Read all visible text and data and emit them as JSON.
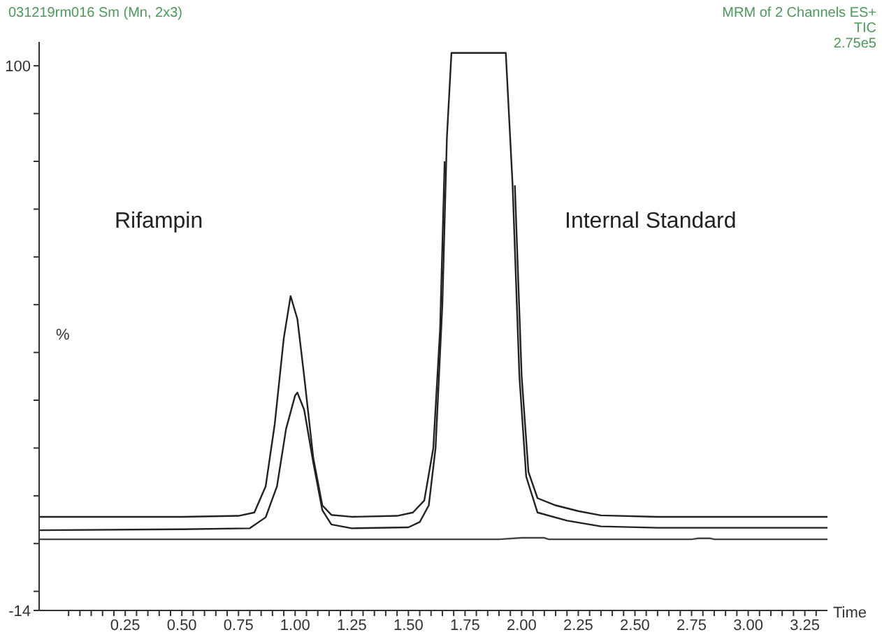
{
  "chart_data": {
    "type": "line",
    "title": "031219rm016 Sm (Mn, 2x3)",
    "subtitle": "MRM of 2 Channels ES+\nTIC\n2.75e5",
    "xlabel": "Time",
    "ylabel": "%",
    "annotations": [
      "Rifampin",
      "Internal Standard"
    ],
    "xlim": [
      -0.13,
      3.35
    ],
    "ylim": [
      -14,
      105
    ],
    "yticks": [
      {
        "value": 100,
        "label": "100"
      },
      {
        "value": 90,
        "label": null
      },
      {
        "value": 80,
        "label": null
      },
      {
        "value": 70,
        "label": null
      },
      {
        "value": 60,
        "label": null
      },
      {
        "value": 50,
        "label": null
      },
      {
        "value": 40,
        "label": null
      },
      {
        "value": 30,
        "label": null
      },
      {
        "value": 20,
        "label": null
      },
      {
        "value": 10,
        "label": null
      },
      {
        "value": 0,
        "label": null
      },
      {
        "value": -10,
        "label": null
      },
      {
        "value": -14,
        "label": "-14"
      }
    ],
    "xticks": [
      {
        "value": 0,
        "label": null
      },
      {
        "value": 0.05,
        "label": null
      },
      {
        "value": 0.1,
        "label": null
      },
      {
        "value": 0.15,
        "label": null
      },
      {
        "value": 0.2,
        "label": null
      },
      {
        "value": 0.25,
        "label": "0.25"
      },
      {
        "value": 0.3,
        "label": null
      },
      {
        "value": 0.35,
        "label": null
      },
      {
        "value": 0.4,
        "label": null
      },
      {
        "value": 0.45,
        "label": null
      },
      {
        "value": 0.5,
        "label": "0.50"
      },
      {
        "value": 0.55,
        "label": null
      },
      {
        "value": 0.6,
        "label": null
      },
      {
        "value": 0.65,
        "label": null
      },
      {
        "value": 0.7,
        "label": null
      },
      {
        "value": 0.75,
        "label": "0.75"
      },
      {
        "value": 0.8,
        "label": null
      },
      {
        "value": 0.85,
        "label": null
      },
      {
        "value": 0.9,
        "label": null
      },
      {
        "value": 0.95,
        "label": null
      },
      {
        "value": 1,
        "label": "1.00"
      },
      {
        "value": 1.05,
        "label": null
      },
      {
        "value": 1.1,
        "label": null
      },
      {
        "value": 1.15,
        "label": null
      },
      {
        "value": 1.2,
        "label": null
      },
      {
        "value": 1.25,
        "label": "1.25"
      },
      {
        "value": 1.3,
        "label": null
      },
      {
        "value": 1.35,
        "label": null
      },
      {
        "value": 1.4,
        "label": null
      },
      {
        "value": 1.45,
        "label": null
      },
      {
        "value": 1.5,
        "label": "1.50"
      },
      {
        "value": 1.55,
        "label": null
      },
      {
        "value": 1.6,
        "label": null
      },
      {
        "value": 1.65,
        "label": null
      },
      {
        "value": 1.7,
        "label": null
      },
      {
        "value": 1.75,
        "label": "1.75"
      },
      {
        "value": 1.8,
        "label": null
      },
      {
        "value": 1.85,
        "label": null
      },
      {
        "value": 1.9,
        "label": null
      },
      {
        "value": 1.95,
        "label": null
      },
      {
        "value": 2,
        "label": "2.00"
      },
      {
        "value": 2.05,
        "label": null
      },
      {
        "value": 2.1,
        "label": null
      },
      {
        "value": 2.15,
        "label": null
      },
      {
        "value": 2.2,
        "label": null
      },
      {
        "value": 2.25,
        "label": "2.25"
      },
      {
        "value": 2.3,
        "label": null
      },
      {
        "value": 2.35,
        "label": null
      },
      {
        "value": 2.4,
        "label": null
      },
      {
        "value": 2.45,
        "label": null
      },
      {
        "value": 2.5,
        "label": "2.50"
      },
      {
        "value": 2.55,
        "label": null
      },
      {
        "value": 2.6,
        "label": null
      },
      {
        "value": 2.65,
        "label": null
      },
      {
        "value": 2.7,
        "label": null
      },
      {
        "value": 2.75,
        "label": "2.75"
      },
      {
        "value": 2.8,
        "label": null
      },
      {
        "value": 2.85,
        "label": null
      },
      {
        "value": 2.9,
        "label": null
      },
      {
        "value": 2.95,
        "label": null
      },
      {
        "value": 3,
        "label": "3.00"
      },
      {
        "value": 3.05,
        "label": null
      },
      {
        "value": 3.1,
        "label": null
      },
      {
        "value": 3.15,
        "label": null
      },
      {
        "value": 3.2,
        "label": null
      },
      {
        "value": 3.25,
        "label": "3.25"
      },
      {
        "value": 3.3,
        "label": null
      }
    ],
    "grid": false,
    "legend": false,
    "marker": "none",
    "line_style": "solid",
    "series": [
      {
        "color": "#222222",
        "x": [
          -0.13,
          0.5,
          0.75,
          0.82,
          0.87,
          0.91,
          0.95,
          0.98,
          1.01,
          1.04,
          1.08,
          1.12,
          1.16,
          1.25,
          1.45,
          1.52,
          1.57,
          1.61,
          1.64,
          1.66,
          1.68,
          1.94,
          1.97,
          2.0,
          2.03,
          2.07,
          2.15,
          2.25,
          2.35,
          2.6,
          3.35
        ],
        "values": [
          5.6,
          5.6,
          5.8,
          6.5,
          12,
          25,
          43,
          51.8,
          47,
          35,
          18,
          8,
          6,
          5.6,
          5.8,
          6.5,
          9,
          20,
          45,
          80,
          null,
          null,
          75,
          35,
          15,
          9.5,
          8,
          6.8,
          5.9,
          5.6,
          5.6
        ]
      },
      {
        "color": "#222222",
        "x": [
          -0.13,
          0.5,
          0.8,
          0.87,
          0.92,
          0.96,
          1.0,
          1.01,
          1.04,
          1.08,
          1.12,
          1.16,
          1.25,
          1.5,
          1.55,
          1.59,
          1.62,
          1.65,
          1.67,
          1.69,
          1.93,
          1.96,
          1.99,
          2.02,
          2.07,
          2.2,
          2.35,
          2.6,
          3.35
        ],
        "values": [
          2.8,
          3.0,
          3.2,
          5.5,
          12,
          24,
          31,
          31.6,
          28,
          17,
          7,
          4,
          3.2,
          3.4,
          4.5,
          8,
          20,
          50,
          85,
          102.7,
          102.7,
          75,
          35,
          14,
          6.5,
          4.8,
          3.6,
          3.3,
          3.3
        ]
      },
      {
        "color": "#444444",
        "x": [
          -0.13,
          1.9,
          2.0,
          2.1,
          2.12,
          2.75,
          2.78,
          2.83,
          2.85,
          3.35
        ],
        "values": [
          0.9,
          0.9,
          1.2,
          1.2,
          0.9,
          0.9,
          1.1,
          1.1,
          0.9,
          0.9
        ]
      }
    ]
  }
}
